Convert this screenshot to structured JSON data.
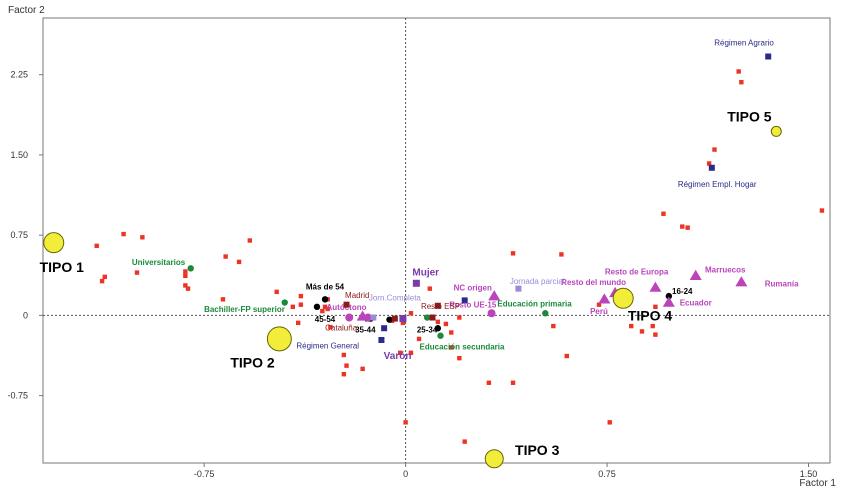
{
  "chart_data": {
    "type": "scatter",
    "xlabel": "Factor 1",
    "ylabel": "Factor 2",
    "xlim": [
      -1.35,
      1.58
    ],
    "ylim": [
      -1.38,
      2.78
    ],
    "x_ticks": [
      {
        "value": -0.75,
        "label": "-0.75"
      },
      {
        "value": 0,
        "label": "0"
      },
      {
        "value": 0.75,
        "label": "0.75"
      },
      {
        "value": 1.5,
        "label": "1.50"
      }
    ],
    "y_ticks": [
      {
        "value": -0.75,
        "label": "-0.75"
      },
      {
        "value": 0,
        "label": "0"
      },
      {
        "value": 0.75,
        "label": "0.75"
      },
      {
        "value": 1.5,
        "label": "1.50"
      },
      {
        "value": 2.25,
        "label": "2.25"
      }
    ],
    "reference_lines": {
      "x": 0,
      "y": 0,
      "style": "dotted"
    },
    "colors": {
      "individuals": "#ee3322",
      "contract": "#2a2a8a",
      "gender": "#7a3aa8",
      "age": "#000000",
      "education": "#1a8a3a",
      "origin": "#bb44bb",
      "region": "#8b1a1a",
      "journey": "#9a8ad8",
      "types": "#f2ec3a",
      "types_stroke": "#666600"
    },
    "individuals": [
      [
        1.55,
        0.98
      ],
      [
        1.24,
        2.28
      ],
      [
        1.25,
        2.18
      ],
      [
        1.15,
        1.55
      ],
      [
        1.13,
        1.42
      ],
      [
        0.96,
        0.95
      ],
      [
        1.03,
        0.83
      ],
      [
        1.05,
        0.82
      ],
      [
        0.58,
        0.57
      ],
      [
        -0.58,
        0.7
      ],
      [
        -0.62,
        0.5
      ],
      [
        -0.82,
        0.28
      ],
      [
        -0.98,
        0.73
      ],
      [
        -1.05,
        0.76
      ],
      [
        -1.15,
        0.65
      ],
      [
        -1.12,
        0.36
      ],
      [
        -1.13,
        0.32
      ],
      [
        -1.0,
        0.4
      ],
      [
        -0.82,
        0.41
      ],
      [
        -0.82,
        0.37
      ],
      [
        -0.81,
        0.25
      ],
      [
        -0.67,
        0.55
      ],
      [
        -0.68,
        0.15
      ],
      [
        -0.48,
        0.22
      ],
      [
        -0.42,
        0.08
      ],
      [
        -0.39,
        0.18
      ],
      [
        -0.39,
        0.1
      ],
      [
        -0.29,
        0.15
      ],
      [
        -0.3,
        0.08
      ],
      [
        -0.28,
        -0.11
      ],
      [
        -0.23,
        -0.37
      ],
      [
        -0.23,
        -0.55
      ],
      [
        -0.22,
        -0.47
      ],
      [
        -0.16,
        -0.5
      ],
      [
        -0.05,
        -0.05
      ],
      [
        -0.01,
        -0.07
      ],
      [
        -0.02,
        -0.35
      ],
      [
        0.02,
        0.02
      ],
      [
        0.02,
        -0.35
      ],
      [
        0.05,
        -0.22
      ],
      [
        0.09,
        0.25
      ],
      [
        0.12,
        -0.06
      ],
      [
        0.15,
        -0.08
      ],
      [
        0.17,
        -0.16
      ],
      [
        0.17,
        -0.3
      ],
      [
        0.2,
        -0.02
      ],
      [
        0.2,
        -0.4
      ],
      [
        0.22,
        -1.18
      ],
      [
        0.31,
        -0.63
      ],
      [
        0.4,
        0.58
      ],
      [
        0.4,
        -0.63
      ],
      [
        0.55,
        -0.1
      ],
      [
        0.6,
        -0.38
      ],
      [
        0.76,
        -1.0
      ],
      [
        0.84,
        -0.1
      ],
      [
        0.88,
        -0.15
      ],
      [
        0.93,
        -0.18
      ],
      [
        0.93,
        0.08
      ],
      [
        0.92,
        -0.1
      ],
      [
        0.0,
        -1.0
      ],
      [
        0.72,
        0.1
      ],
      [
        -0.31,
        0.04
      ],
      [
        -0.4,
        -0.07
      ],
      [
        -0.29,
        0.06
      ]
    ],
    "categories": [
      {
        "x": 1.35,
        "y": 2.42,
        "shape": "square",
        "group": "contract",
        "label": "Régimen Agrario",
        "lx": 1.26,
        "ly": 2.55,
        "bold": false,
        "size": "normal"
      },
      {
        "x": 1.14,
        "y": 1.38,
        "shape": "square",
        "group": "contract",
        "label": "Régimen Empl. Hogar",
        "lx": 1.16,
        "ly": 1.23,
        "bold": false,
        "size": "normal"
      },
      {
        "x": -0.09,
        "y": -0.23,
        "shape": "square",
        "group": "contract",
        "label": "Régimen General",
        "lx": -0.29,
        "ly": -0.28,
        "bold": false,
        "size": "normal"
      },
      {
        "x": -0.08,
        "y": -0.12,
        "shape": "square",
        "group": "contract",
        "label": "",
        "lx": 0,
        "ly": 0,
        "bold": false,
        "size": "normal"
      },
      {
        "x": -0.14,
        "y": -0.03,
        "shape": "square",
        "group": "contract",
        "label": "",
        "lx": 0,
        "ly": 0,
        "bold": false,
        "size": "normal"
      },
      {
        "x": 0.22,
        "y": 0.14,
        "shape": "square",
        "group": "contract",
        "label": "",
        "lx": 0,
        "ly": 0,
        "bold": false,
        "size": "normal"
      },
      {
        "x": 0.04,
        "y": 0.3,
        "shape": "square",
        "group": "gender",
        "label": "Mujer",
        "lx": 0.075,
        "ly": 0.4,
        "bold": true,
        "size": "big"
      },
      {
        "x": -0.01,
        "y": -0.03,
        "shape": "square",
        "group": "gender",
        "label": "Varón",
        "lx": -0.03,
        "ly": -0.38,
        "bold": true,
        "size": "big"
      },
      {
        "x": -0.3,
        "y": 0.15,
        "shape": "circle",
        "group": "age",
        "label": "Más de 54",
        "lx": -0.3,
        "ly": 0.27,
        "bold": true,
        "size": "normal"
      },
      {
        "x": -0.33,
        "y": 0.08,
        "shape": "circle",
        "group": "age",
        "label": "",
        "lx": 0,
        "ly": 0,
        "bold": false,
        "size": "normal"
      },
      {
        "x": -0.13,
        "y": -0.03,
        "shape": "circle",
        "group": "age",
        "label": "45-54",
        "lx": -0.3,
        "ly": -0.035,
        "bold": true,
        "size": "normal"
      },
      {
        "x": -0.06,
        "y": -0.04,
        "shape": "circle",
        "group": "age",
        "label": "35-44",
        "lx": -0.15,
        "ly": -0.13,
        "bold": true,
        "size": "normal"
      },
      {
        "x": 0.12,
        "y": -0.12,
        "shape": "circle",
        "group": "age",
        "label": "25-34",
        "lx": 0.08,
        "ly": -0.13,
        "bold": true,
        "size": "normal"
      },
      {
        "x": 0.98,
        "y": 0.18,
        "shape": "circle",
        "group": "age",
        "label": "16-24",
        "lx": 1.03,
        "ly": 0.23,
        "bold": true,
        "size": "normal"
      },
      {
        "x": -0.45,
        "y": 0.12,
        "shape": "circle",
        "group": "education",
        "label": "Bachiller-FP superior",
        "lx": -0.6,
        "ly": 0.06,
        "bold": true,
        "size": "normal"
      },
      {
        "x": -0.8,
        "y": 0.44,
        "shape": "circle",
        "group": "education",
        "label": "Universitarios",
        "lx": -0.92,
        "ly": 0.5,
        "bold": true,
        "size": "normal"
      },
      {
        "x": 0.13,
        "y": -0.19,
        "shape": "circle",
        "group": "education",
        "label": "Educación secundaria",
        "lx": 0.21,
        "ly": -0.29,
        "bold": true,
        "size": "normal"
      },
      {
        "x": 0.52,
        "y": 0.02,
        "shape": "circle",
        "group": "education",
        "label": "Educación primaria",
        "lx": 0.48,
        "ly": 0.11,
        "bold": true,
        "size": "normal"
      },
      {
        "x": 0.08,
        "y": -0.02,
        "shape": "circle",
        "group": "education",
        "label": "",
        "lx": 0,
        "ly": 0,
        "bold": false,
        "size": "normal"
      },
      {
        "x": 1.25,
        "y": 0.31,
        "shape": "triangle",
        "group": "origin",
        "label": "Rumanía",
        "lx": 1.4,
        "ly": 0.3,
        "bold": true,
        "size": "normal"
      },
      {
        "x": 1.08,
        "y": 0.37,
        "shape": "triangle",
        "group": "origin",
        "label": "Marruecos",
        "lx": 1.19,
        "ly": 0.43,
        "bold": true,
        "size": "normal"
      },
      {
        "x": 0.93,
        "y": 0.26,
        "shape": "triangle",
        "group": "origin",
        "label": "Resto de Europa",
        "lx": 0.86,
        "ly": 0.41,
        "bold": true,
        "size": "normal"
      },
      {
        "x": 0.78,
        "y": 0.21,
        "shape": "triangle",
        "group": "origin",
        "label": "Resto del mundo",
        "lx": 0.7,
        "ly": 0.31,
        "bold": true,
        "size": "normal"
      },
      {
        "x": 0.98,
        "y": 0.12,
        "shape": "triangle",
        "group": "origin",
        "label": "Ecuador",
        "lx": 1.08,
        "ly": 0.12,
        "bold": true,
        "size": "normal"
      },
      {
        "x": 0.74,
        "y": 0.15,
        "shape": "triangle",
        "group": "origin",
        "label": "Perú",
        "lx": 0.72,
        "ly": 0.04,
        "bold": true,
        "size": "normal"
      },
      {
        "x": 0.33,
        "y": 0.18,
        "shape": "triangle",
        "group": "origin",
        "label": "NC origen",
        "lx": 0.25,
        "ly": 0.26,
        "bold": true,
        "size": "normal"
      },
      {
        "x": 0.32,
        "y": 0.02,
        "shape": "circle",
        "group": "origin",
        "label": "Resto UE-15",
        "lx": 0.25,
        "ly": 0.1,
        "bold": true,
        "size": "normal"
      },
      {
        "x": -0.21,
        "y": -0.02,
        "shape": "circle",
        "group": "origin",
        "label": "",
        "lx": 0,
        "ly": 0,
        "bold": false,
        "size": "normal"
      },
      {
        "x": -0.14,
        "y": -0.02,
        "shape": "circle",
        "group": "origin",
        "label": "",
        "lx": 0,
        "ly": 0,
        "bold": false,
        "size": "normal"
      },
      {
        "x": -0.16,
        "y": -0.01,
        "shape": "triangle",
        "group": "origin",
        "label": "Autóctono",
        "lx": -0.22,
        "ly": 0.08,
        "bold": true,
        "size": "normal"
      },
      {
        "x": -0.22,
        "y": 0.1,
        "shape": "square",
        "group": "region",
        "label": "Madrid",
        "lx": -0.18,
        "ly": 0.19,
        "bold": false,
        "size": "normal"
      },
      {
        "x": -0.04,
        "y": -0.03,
        "shape": "square",
        "group": "region",
        "label": "Cataluña",
        "lx": -0.24,
        "ly": -0.115,
        "bold": false,
        "size": "normal"
      },
      {
        "x": 0.1,
        "y": -0.02,
        "shape": "square",
        "group": "region",
        "label": "",
        "lx": 0,
        "ly": 0,
        "bold": false,
        "size": "normal"
      },
      {
        "x": 0.12,
        "y": 0.09,
        "shape": "square",
        "group": "region",
        "label": "Resto ESP",
        "lx": 0.13,
        "ly": 0.09,
        "bold": false,
        "size": "normal"
      },
      {
        "x": -0.12,
        "y": -0.02,
        "shape": "square",
        "group": "journey",
        "label": "Jorn.Completa",
        "lx": -0.04,
        "ly": 0.165,
        "bold": false,
        "size": "normal"
      },
      {
        "x": 0.42,
        "y": 0.25,
        "shape": "square",
        "group": "journey",
        "label": "Jornada parcial",
        "lx": 0.49,
        "ly": 0.32,
        "bold": false,
        "size": "normal"
      }
    ],
    "types": [
      {
        "name": "TIPO 1",
        "x": -1.31,
        "y": 0.68,
        "r": 10,
        "lx": -1.28,
        "ly": 0.45
      },
      {
        "name": "TIPO 2",
        "x": -0.47,
        "y": -0.22,
        "r": 12,
        "lx": -0.57,
        "ly": -0.44
      },
      {
        "name": "TIPO 3",
        "x": 0.33,
        "y": -1.34,
        "r": 9,
        "lx": 0.49,
        "ly": -1.26
      },
      {
        "name": "TIPO 4",
        "x": 0.81,
        "y": 0.16,
        "r": 10,
        "lx": 0.91,
        "ly": 0.0
      },
      {
        "name": "TIPO 5",
        "x": 1.38,
        "y": 1.72,
        "r": 5,
        "lx": 1.28,
        "ly": 1.86
      }
    ]
  }
}
